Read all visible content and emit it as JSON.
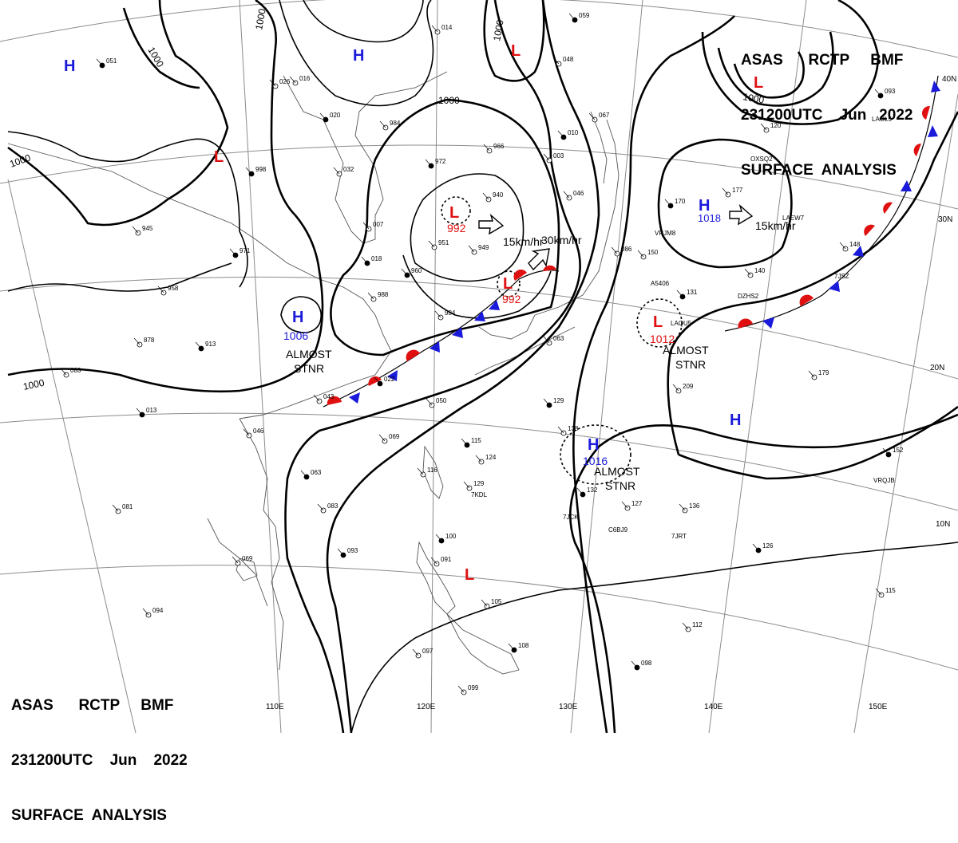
{
  "header": {
    "line1": "ASAS      RCTP     BMF",
    "line2": "231200UTC    Jun   2022",
    "line3": "SURFACE  ANALYSIS"
  },
  "footer": {
    "line1": "ASAS      RCTP     BMF",
    "line2": "231200UTC    Jun    2022",
    "line3": "SURFACE  ANALYSIS"
  },
  "colors": {
    "high": "#1a1adb",
    "low": "#e01010",
    "cold_front": "#1a1adb",
    "warm_front": "#e01010",
    "lines": "#000000",
    "grid": "#8c8c8c"
  },
  "grid": {
    "longitudes": [
      "110E",
      "120E",
      "130E",
      "140E",
      "150E"
    ],
    "latitudes": [
      "40N",
      "30N",
      "20N",
      "10N"
    ]
  },
  "isobar_labels": [
    "1000",
    "1000",
    "1000",
    "1000",
    "1000",
    "1000",
    "1000"
  ],
  "pressure_centers": [
    {
      "type": "H",
      "value": ""
    },
    {
      "type": "H",
      "value": ""
    },
    {
      "type": "L",
      "value": ""
    },
    {
      "type": "L",
      "value": ""
    },
    {
      "type": "L",
      "value": ""
    },
    {
      "type": "L",
      "value": "992"
    },
    {
      "type": "L",
      "value": "992"
    },
    {
      "type": "H",
      "value": "1018"
    },
    {
      "type": "H",
      "value": "1006"
    },
    {
      "type": "L",
      "value": "1012"
    },
    {
      "type": "H",
      "value": "1016"
    },
    {
      "type": "H",
      "value": ""
    },
    {
      "type": "L",
      "value": ""
    }
  ],
  "annotations": {
    "motion_1": "15km/hr",
    "motion_2": "30km/hr",
    "motion_3": "15km/hr",
    "stnr_1_a": "ALMOST",
    "stnr_1_b": "STNR",
    "stnr_2_a": "ALMOST",
    "stnr_2_b": "STNR",
    "stnr_3_a": "ALMOST",
    "stnr_3_b": "STNR"
  },
  "stations": [
    "051",
    "016",
    "026",
    "020",
    "984",
    "966",
    "972",
    "940",
    "003",
    "010",
    "067",
    "046",
    "059",
    "048",
    "014",
    "093",
    "120",
    "177",
    "170",
    "148",
    "140",
    "131",
    "150",
    "086",
    "998",
    "032",
    "007",
    "018",
    "949",
    "951",
    "960",
    "988",
    "958",
    "971",
    "945",
    "878",
    "913",
    "984",
    "043",
    "022",
    "050",
    "069",
    "115",
    "124",
    "138",
    "132",
    "127",
    "136",
    "152",
    "179",
    "209",
    "129",
    "063",
    "046",
    "013",
    "083",
    "069",
    "093",
    "081",
    "094",
    "100",
    "091",
    "105",
    "108",
    "097",
    "099",
    "126",
    "115",
    "112",
    "098",
    "116",
    "129",
    "063",
    "083"
  ],
  "station_ids": [
    "LAOL5",
    "OXSQ2",
    "VRJM8",
    "7JSZ",
    "A5406",
    "DZHS2",
    "LAQU5",
    "VRQJB",
    "7JCK",
    "C6BJ9",
    "7JRT",
    "7KDL",
    "LAEW7"
  ]
}
